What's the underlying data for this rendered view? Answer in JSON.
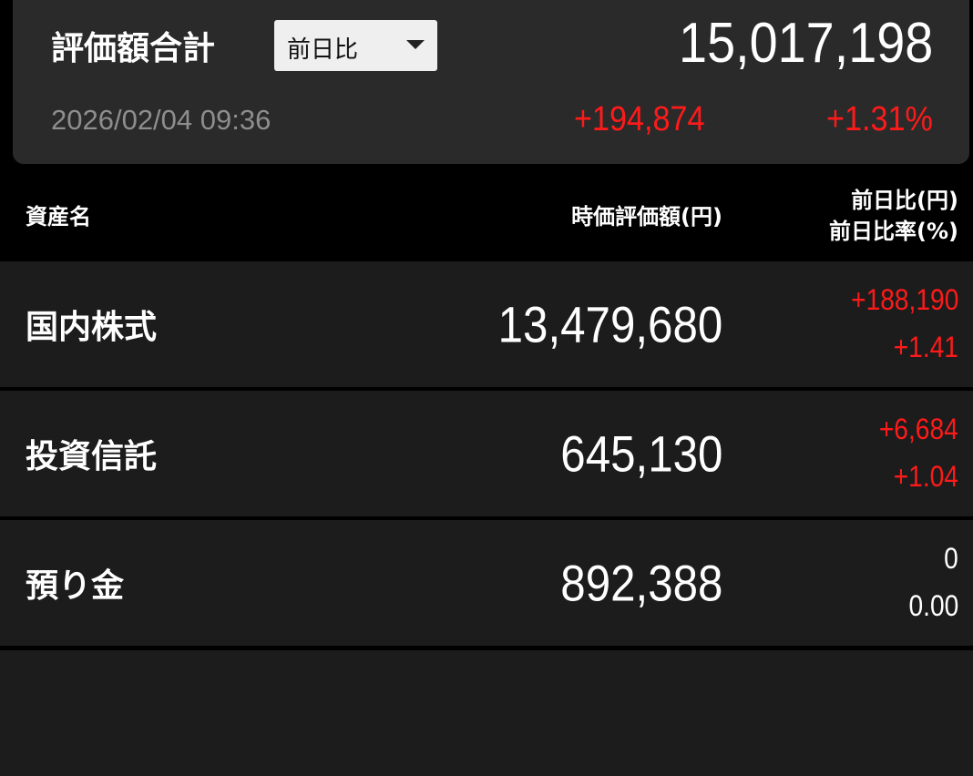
{
  "summary": {
    "title": "評価額合計",
    "compare_select": "前日比",
    "total": "15,017,198",
    "timestamp": "2026/02/04 09:36",
    "change": "+194,874",
    "change_pct": "+1.31%"
  },
  "header": {
    "asset_name": "資産名",
    "market_value": "時価評価額(円)",
    "change_yen": "前日比(円)",
    "change_pct": "前日比率(%)"
  },
  "rows": [
    {
      "name": "国内株式",
      "value": "13,479,680",
      "change": "+188,190",
      "pct": "+1.41"
    },
    {
      "name": "投資信託",
      "value": "645,130",
      "change": "+6,684",
      "pct": "+1.04"
    },
    {
      "name": "預り金",
      "value": "892,388",
      "change": "0",
      "pct": "0.00"
    }
  ],
  "colors": {
    "positive": "#ff1a1a",
    "neutral": "#ffffff"
  }
}
